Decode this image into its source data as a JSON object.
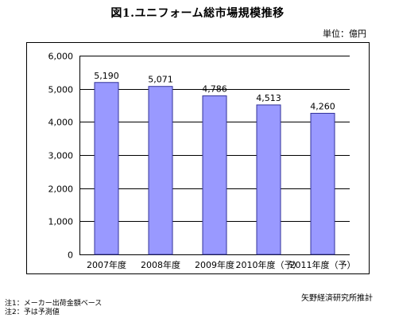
{
  "page": {
    "title": "図1.ユニフォーム総市場規模推移",
    "unit": "単位：億円",
    "source": "矢野経済研究所推計",
    "notes": [
      "注1：メーカー出荷金額ベース",
      "注2：予は予測値"
    ]
  },
  "chart_data": {
    "type": "bar",
    "title": "図1.ユニフォーム総市場規模推移",
    "categories": [
      "2007年度",
      "2008年度",
      "2009年度",
      "2010年度（予）",
      "2011年度（予）"
    ],
    "values": [
      5190,
      5071,
      4786,
      4513,
      4260
    ],
    "data_labels": [
      "5,190",
      "5,071",
      "4,786",
      "4,513",
      "4,260"
    ],
    "ylim": [
      0,
      6000
    ],
    "yticks": [
      0,
      1000,
      2000,
      3000,
      4000,
      5000,
      6000
    ],
    "ytick_labels": [
      "0",
      "1,000",
      "2,000",
      "3,000",
      "4,000",
      "5,000",
      "6,000"
    ],
    "grid": true,
    "bar_color": "#9999FF",
    "bar_border_color": "#333399",
    "xlabel": "",
    "ylabel": ""
  }
}
